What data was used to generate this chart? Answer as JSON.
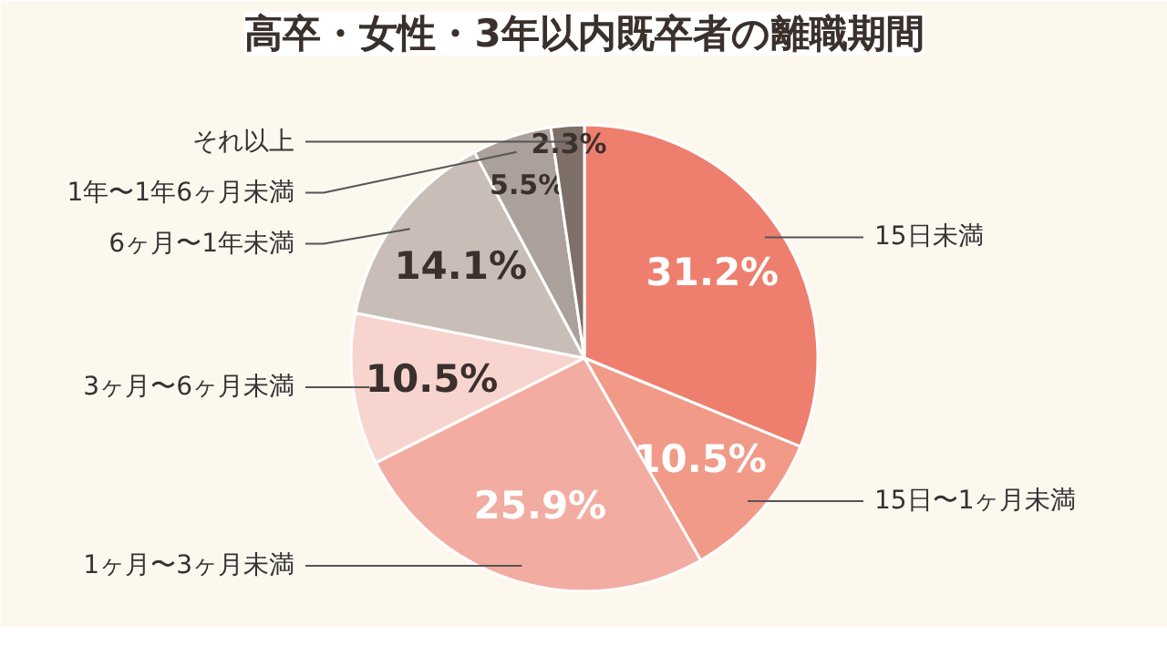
{
  "chart_data": {
    "type": "pie",
    "title": "高卒・女性・3年以内既卒者の離職期間",
    "categories": [
      "15日未満",
      "15日〜1ヶ月未満",
      "1ヶ月〜3ヶ月未満",
      "3ヶ月〜6ヶ月未満",
      "6ヶ月〜1年未満",
      "1年〜1年6ヶ月未満",
      "それ以上"
    ],
    "values": [
      31.2,
      10.5,
      25.9,
      10.5,
      14.1,
      5.5,
      2.3
    ],
    "value_labels": [
      "31.2%",
      "10.5%",
      "25.9%",
      "10.5%",
      "14.1%",
      "5.5%",
      "2.3%"
    ],
    "colors": [
      "#ee7f6e",
      "#f19a88",
      "#f3aca1",
      "#f8d4cf",
      "#c9bdb8",
      "#aba09b",
      "#7e6f68"
    ]
  }
}
